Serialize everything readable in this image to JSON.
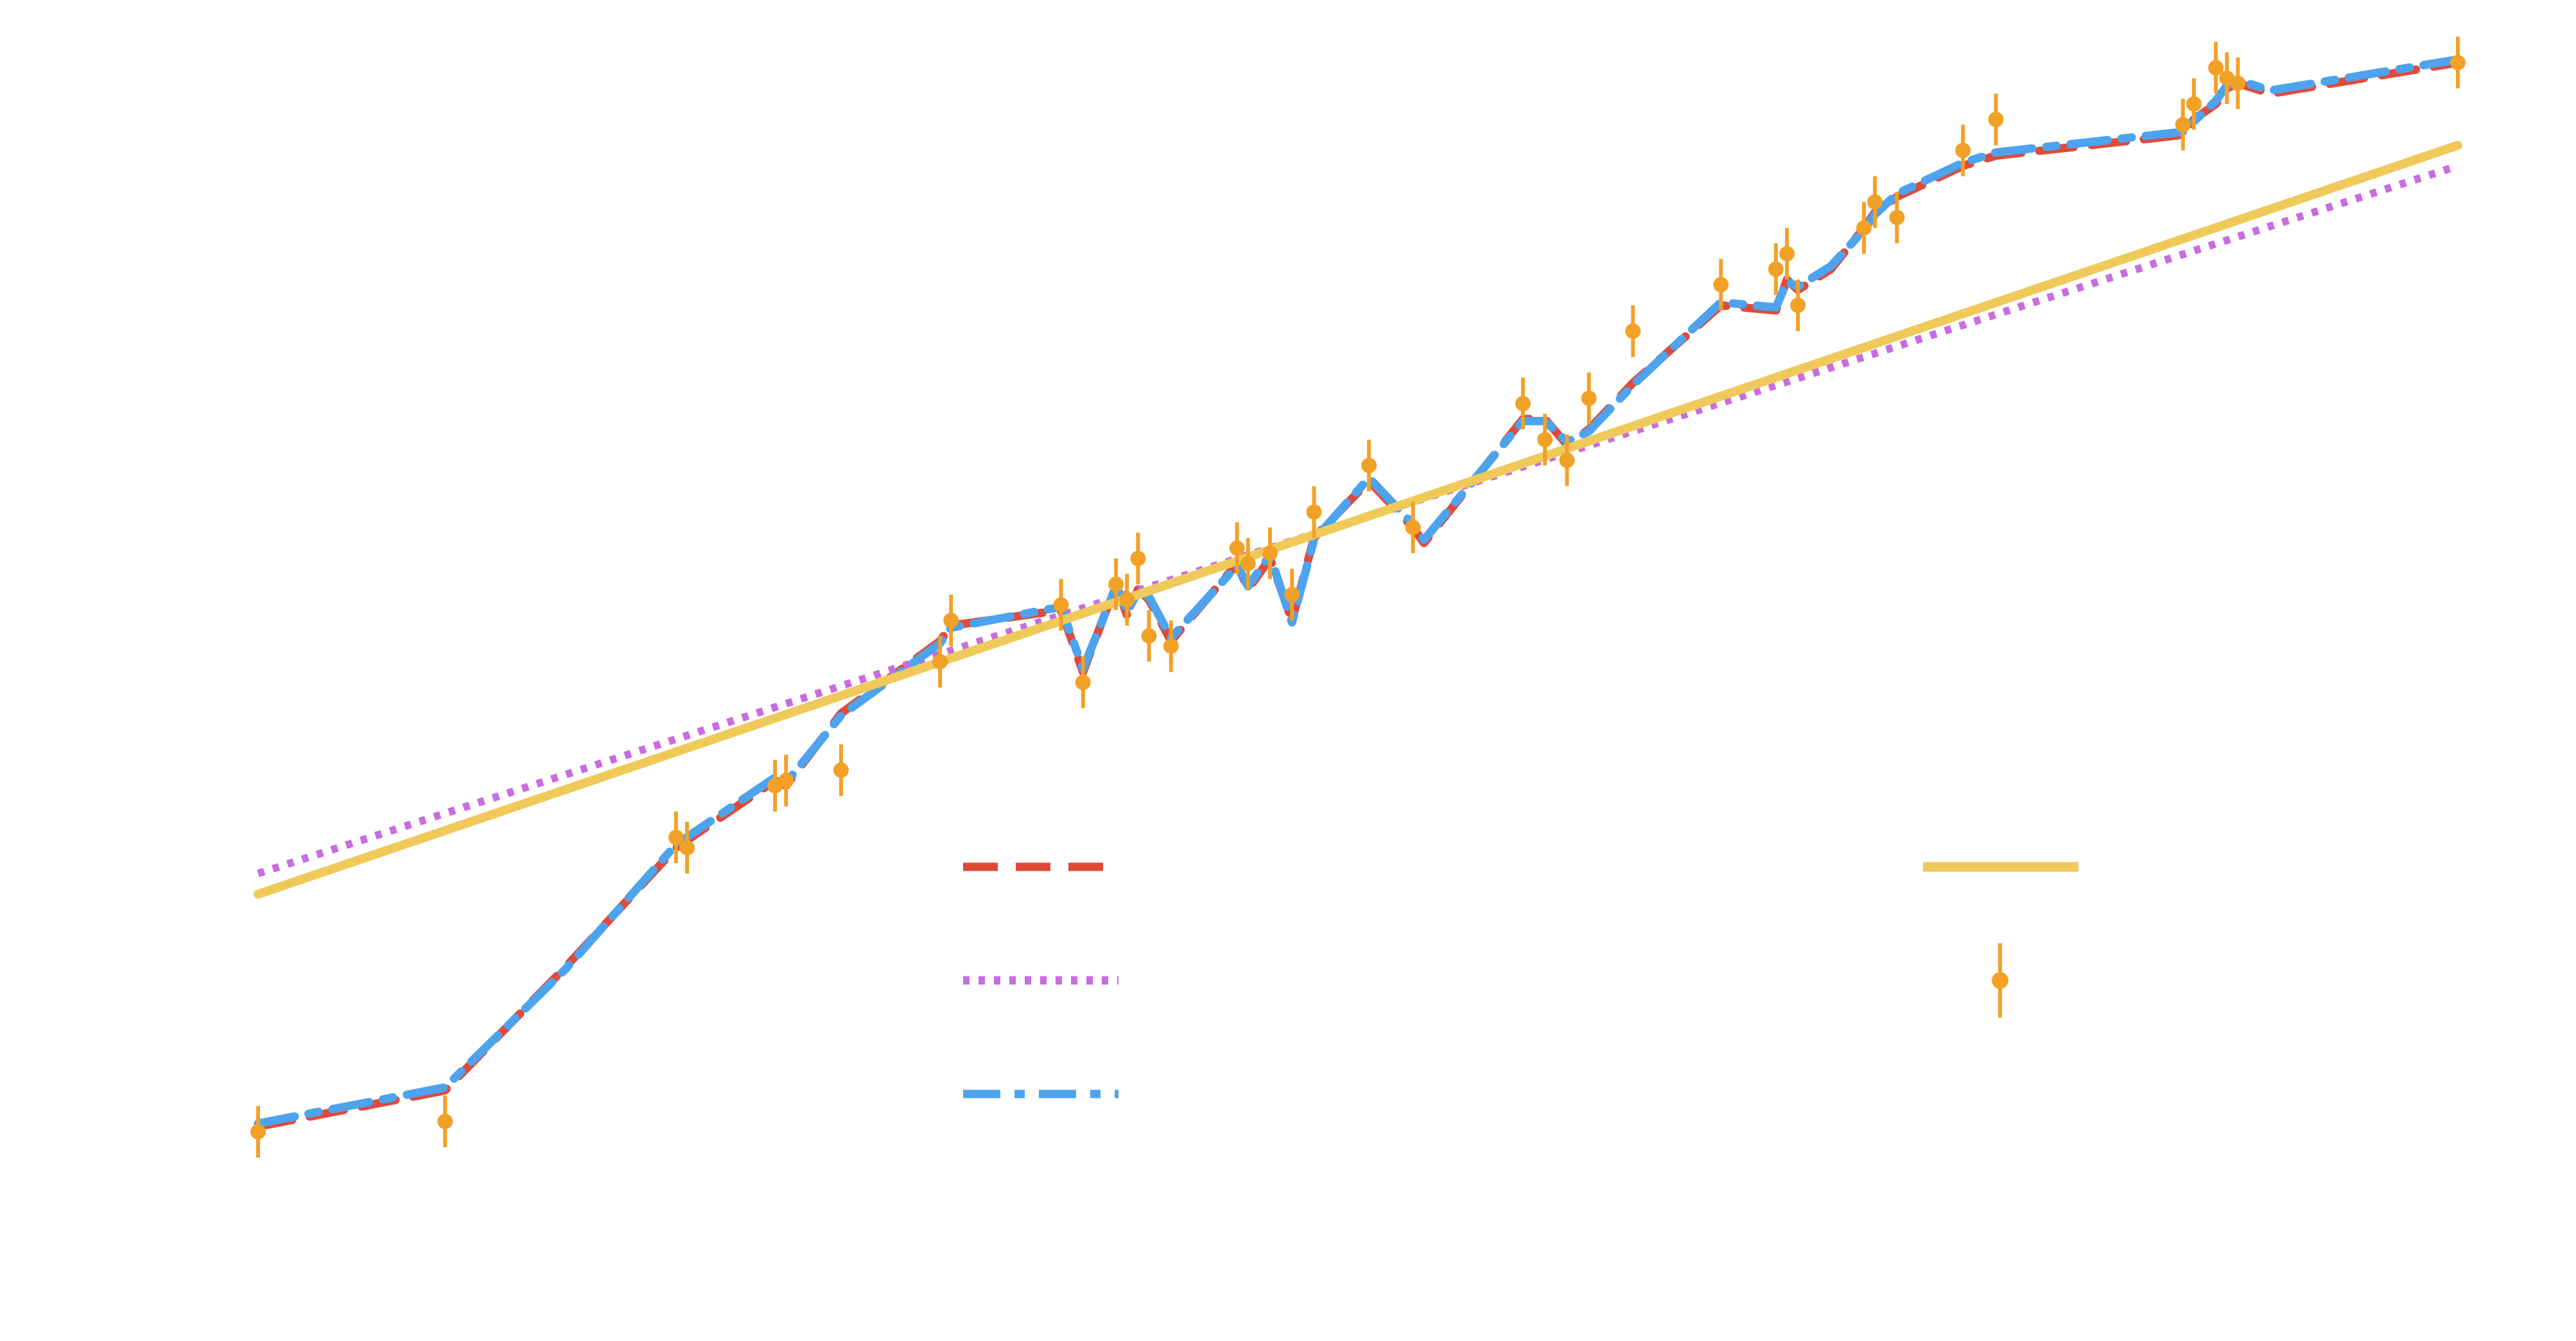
{
  "chart_data": {
    "type": "line",
    "title": "",
    "xlabel": "",
    "ylabel": "",
    "xlim": [
      0,
      100
    ],
    "ylim": [
      0,
      100
    ],
    "grid": false,
    "legend_position": "bottom-center",
    "series": [
      {
        "legend_key": "red_dashed",
        "color": "#e04a3a",
        "line_style": "dashed",
        "x": [
          0.0,
          8.5,
          14.0,
          19.0,
          23.5,
          24.0,
          26.5,
          31.0,
          31.5,
          36.5,
          37.5,
          39.0,
          39.5,
          40.0,
          40.5,
          41.5,
          44.5,
          45.0,
          46.0,
          47.0,
          48.0,
          50.5,
          52.5,
          53.0,
          57.5,
          58.5,
          59.5,
          60.5,
          62.5,
          66.5,
          69.0,
          69.5,
          70.0,
          71.5,
          73.0,
          73.5,
          74.5,
          77.5,
          79.0,
          87.5,
          88.0,
          89.0,
          89.5,
          90.0,
          91.5,
          100.0
        ],
        "y": [
          1.5,
          5.0,
          17.0,
          28.5,
          35.0,
          34.5,
          41.5,
          48.5,
          50.0,
          51.5,
          45.5,
          54.0,
          51.0,
          53.5,
          52.5,
          48.5,
          56.0,
          53.5,
          56.5,
          50.5,
          58.5,
          64.0,
          59.5,
          58.0,
          70.0,
          70.0,
          67.5,
          69.0,
          73.5,
          81.0,
          80.5,
          83.5,
          82.5,
          84.5,
          88.5,
          90.0,
          91.5,
          94.5,
          95.5,
          97.5,
          99.0,
          100.5,
          102.0,
          102.5,
          101.5,
          104.5
        ]
      },
      {
        "legend_key": "magenta_dotted",
        "color": "#c86ce0",
        "line_style": "dotted",
        "x": [
          0,
          100
        ],
        "y": [
          26.0,
          94.5
        ]
      },
      {
        "legend_key": "blue_dashdot",
        "color": "#4da3ee",
        "line_style": "dashdot",
        "x": [
          0.0,
          8.5,
          14.0,
          19.0,
          23.5,
          24.0,
          26.5,
          31.0,
          31.5,
          36.5,
          37.5,
          39.0,
          39.5,
          40.0,
          40.5,
          41.5,
          44.5,
          45.0,
          46.0,
          47.0,
          48.0,
          50.5,
          52.5,
          53.0,
          57.5,
          58.5,
          59.5,
          60.5,
          62.5,
          66.5,
          69.0,
          69.5,
          70.0,
          71.5,
          73.0,
          73.5,
          74.5,
          77.5,
          79.0,
          87.5,
          88.0,
          89.0,
          89.5,
          90.0,
          91.5,
          100.0
        ],
        "y": [
          1.8,
          5.3,
          16.8,
          28.8,
          35.3,
          34.8,
          41.3,
          48.3,
          49.8,
          51.8,
          45.8,
          53.8,
          51.3,
          53.3,
          52.8,
          48.8,
          55.8,
          53.8,
          56.8,
          50.3,
          58.3,
          64.3,
          59.8,
          58.3,
          69.8,
          69.8,
          67.8,
          68.8,
          73.3,
          81.3,
          80.8,
          83.3,
          82.8,
          84.8,
          88.3,
          89.8,
          91.8,
          94.8,
          95.8,
          97.8,
          98.8,
          100.8,
          102.3,
          102.8,
          101.8,
          104.8
        ]
      },
      {
        "legend_key": "yellow_solid",
        "color": "#efc95a",
        "line_style": "solid",
        "x": [
          0,
          100
        ],
        "y": [
          24.0,
          96.5
        ]
      }
    ],
    "error_points": {
      "legend_key": "orange_errorbar",
      "color": "#f2a127",
      "x": [
        0.0,
        8.5,
        19.0,
        19.5,
        23.5,
        24.0,
        26.5,
        31.0,
        31.5,
        36.5,
        37.5,
        39.0,
        39.5,
        40.0,
        40.5,
        41.5,
        44.5,
        45.0,
        46.0,
        47.0,
        48.0,
        50.5,
        52.5,
        57.5,
        58.5,
        59.5,
        60.5,
        62.5,
        66.5,
        69.0,
        69.5,
        70.0,
        73.0,
        73.5,
        74.5,
        77.5,
        79.0,
        87.5,
        88.0,
        89.0,
        89.5,
        90.0,
        100.0
      ],
      "y": [
        1.0,
        2.0,
        29.5,
        28.5,
        34.5,
        35.0,
        36.0,
        46.5,
        50.5,
        52.0,
        44.5,
        54.0,
        52.5,
        56.5,
        49.0,
        48.0,
        57.5,
        56.0,
        57.0,
        53.0,
        61.0,
        65.5,
        59.5,
        71.5,
        68.0,
        66.0,
        72.0,
        78.5,
        83.0,
        84.5,
        86.0,
        81.0,
        88.5,
        91.0,
        89.5,
        96.0,
        99.0,
        98.5,
        100.5,
        104.0,
        103.0,
        102.5,
        104.5
      ],
      "yerr": [
        2.5,
        2.5,
        2.5,
        2.5,
        2.5,
        2.5,
        2.5,
        2.5,
        2.5,
        2.5,
        2.5,
        2.5,
        2.5,
        2.5,
        2.5,
        2.5,
        2.5,
        2.5,
        2.5,
        2.5,
        2.5,
        2.5,
        2.5,
        2.5,
        2.5,
        2.5,
        2.5,
        2.5,
        2.5,
        2.5,
        2.5,
        2.5,
        2.5,
        2.5,
        2.5,
        2.5,
        2.5,
        2.5,
        2.5,
        2.5,
        2.5,
        2.5,
        2.5
      ]
    },
    "legend_entries": [
      {
        "key": "red_dashed",
        "label": ""
      },
      {
        "key": "magenta_dotted",
        "label": ""
      },
      {
        "key": "blue_dashdot",
        "label": ""
      },
      {
        "key": "yellow_solid",
        "label": ""
      },
      {
        "key": "orange_errorbar",
        "label": ""
      }
    ]
  }
}
